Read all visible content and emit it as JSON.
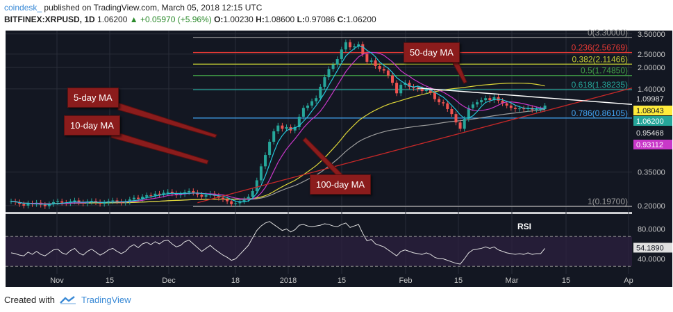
{
  "header": {
    "brand": "coindesk_",
    "published_text": "published on TradingView.com, March 05, 2018 12:15 UTC",
    "symbol": "BITFINEX:XRPUSD, 1D",
    "last": "1.06200",
    "change": "▲ +0.05970 (+5.96%)",
    "o_label": "O:",
    "o_value": "1.00230",
    "h_label": "H:",
    "h_value": "1.08600",
    "l_label": "L:",
    "l_value": "0.97086",
    "c_label": "C:",
    "c_value": "1.06200"
  },
  "annotations": {
    "ma5": "5-day MA",
    "ma10": "10-day MA",
    "ma50": "50-day MA",
    "ma100": "100-day MA"
  },
  "footer": {
    "created_with": "Created with",
    "tradingview": "TradingView"
  },
  "colors": {
    "background": "#131722",
    "grid": "#2a2e39",
    "up": "#26a69a",
    "down": "#ef5350",
    "ma5": "#26c6da",
    "ma10": "#c838c8",
    "ma50": "#e0d838",
    "ma100": "#9e9e9e",
    "fib_0": "#9e9e9e",
    "fib_0236": "#e53935",
    "fib_0382": "#c0ca33",
    "fib_05": "#43a047",
    "fib_0618": "#26a69a",
    "fib_0786": "#42a5f5",
    "fib_1": "#9e9e9e",
    "trend_support": "#c62828",
    "trend_resistance": "#ffffff",
    "annotation": "#8b1c1c",
    "rsi": "#e0e0e0",
    "rsi_band": "#2a1f3d"
  },
  "chart_data": {
    "type": "candlestick",
    "scale": "log",
    "ylim": [
      0.18,
      3.7
    ],
    "x_tick_labels": [
      "Nov",
      "15",
      "Dec",
      "18",
      "2018",
      "15",
      "Feb",
      "15",
      "Mar",
      "15",
      "Ap"
    ],
    "y_tick_labels": [
      "3.50000",
      "2.50000",
      "2.00000",
      "1.40000",
      "0.35000",
      "0.20000"
    ],
    "price_labels": [
      {
        "value": "1.09987"
      },
      {
        "value": "1.08043"
      },
      {
        "value": "1.06200"
      },
      {
        "value": "0.95468"
      },
      {
        "value": "0.93112"
      }
    ],
    "fibonacci": [
      {
        "ratio": 0,
        "label": "0(3.30000)",
        "price": 3.3
      },
      {
        "ratio": 0.236,
        "label": "0.236(2.56769)",
        "price": 2.56769
      },
      {
        "ratio": 0.382,
        "label": "0.382(2.11466)",
        "price": 2.11466
      },
      {
        "ratio": 0.5,
        "label": "0.5(1.74850)",
        "price": 1.7485
      },
      {
        "ratio": 0.618,
        "label": "0.618(1.38235)",
        "price": 1.38235
      },
      {
        "ratio": 0.786,
        "label": "0.786(0.86105)",
        "price": 0.86105
      },
      {
        "ratio": 1,
        "label": "1(0.19700)",
        "price": 0.197
      }
    ],
    "candles_close": [
      0.215,
      0.212,
      0.205,
      0.2,
      0.208,
      0.205,
      0.21,
      0.203,
      0.198,
      0.205,
      0.212,
      0.215,
      0.21,
      0.208,
      0.214,
      0.218,
      0.211,
      0.207,
      0.213,
      0.216,
      0.212,
      0.206,
      0.21,
      0.215,
      0.218,
      0.214,
      0.21,
      0.213,
      0.222,
      0.228,
      0.224,
      0.232,
      0.238,
      0.236,
      0.244,
      0.24,
      0.248,
      0.252,
      0.245,
      0.238,
      0.242,
      0.25,
      0.255,
      0.248,
      0.24,
      0.232,
      0.238,
      0.244,
      0.236,
      0.228,
      0.222,
      0.215,
      0.205,
      0.208,
      0.215,
      0.222,
      0.232,
      0.255,
      0.305,
      0.385,
      0.465,
      0.58,
      0.69,
      0.76,
      0.72,
      0.74,
      0.7,
      0.74,
      0.88,
      1.02,
      1.06,
      1.14,
      1.2,
      1.45,
      1.7,
      1.95,
      2.1,
      2.3,
      2.7,
      3.05,
      2.8,
      2.85,
      2.95,
      2.5,
      2.2,
      2.25,
      2.05,
      1.95,
      1.9,
      1.75,
      1.55,
      1.3,
      1.5,
      1.55,
      1.45,
      1.42,
      1.4,
      1.35,
      1.38,
      1.32,
      1.18,
      1.12,
      1.1,
      1.0,
      0.92,
      0.8,
      0.72,
      0.85,
      1.02,
      1.08,
      1.12,
      1.16,
      1.2,
      1.16,
      1.22,
      1.15,
      1.1,
      1.06,
      1.02,
      1.0,
      1.01,
      1.0,
      1.02,
      0.99,
      1.0,
      1.0,
      1.06
    ],
    "rsi": {
      "label": "RSI",
      "value_label": "54.1890",
      "levels": [
        "80.0000",
        "40.0000"
      ],
      "ylim": [
        20,
        100
      ],
      "values": [
        48,
        47,
        45,
        44,
        49,
        46,
        50,
        46,
        44,
        48,
        52,
        53,
        48,
        46,
        51,
        54,
        48,
        45,
        50,
        53,
        49,
        45,
        48,
        52,
        54,
        50,
        47,
        50,
        56,
        59,
        55,
        60,
        62,
        59,
        63,
        60,
        64,
        65,
        60,
        56,
        58,
        63,
        65,
        60,
        55,
        50,
        54,
        58,
        53,
        49,
        45,
        42,
        38,
        40,
        46,
        52,
        58,
        68,
        78,
        84,
        88,
        90,
        86,
        82,
        78,
        80,
        76,
        79,
        85,
        86,
        84,
        83,
        84,
        85,
        87,
        86,
        84,
        83,
        86,
        88,
        82,
        84,
        86,
        74,
        64,
        66,
        60,
        58,
        56,
        52,
        48,
        44,
        50,
        52,
        50,
        48,
        47,
        46,
        48,
        46,
        42,
        40,
        40,
        38,
        36,
        34,
        33,
        40,
        48,
        52,
        53,
        54,
        56,
        54,
        56,
        52,
        50,
        48,
        47,
        46,
        47,
        46,
        48,
        46,
        47,
        47,
        54
      ]
    }
  }
}
